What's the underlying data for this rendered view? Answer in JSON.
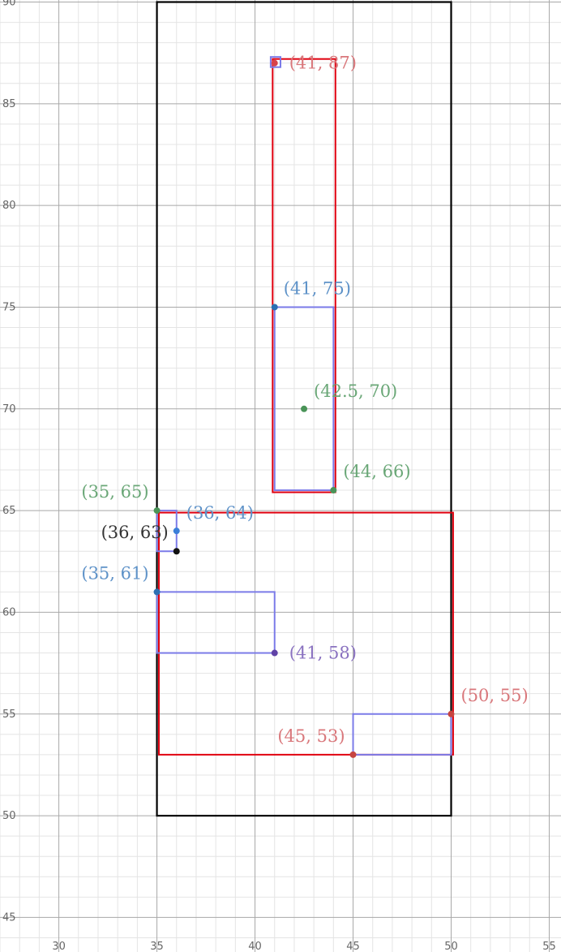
{
  "chart_data": {
    "type": "scatter",
    "title": "",
    "xlabel": "",
    "ylabel": "",
    "xlim": [
      27,
      55.6
    ],
    "ylim": [
      43.3,
      90.1
    ],
    "grid": true,
    "x_ticks": [
      30,
      35,
      40,
      45,
      50,
      55
    ],
    "y_ticks": [
      45,
      50,
      55,
      60,
      65,
      70,
      75,
      80,
      85,
      90
    ],
    "x_tick_labels": [
      "30",
      "35",
      "40",
      "45",
      "50",
      "55"
    ],
    "y_tick_labels": [
      "45",
      "50",
      "55",
      "60",
      "65",
      "70",
      "75",
      "80",
      "85",
      "90"
    ],
    "rectangles": [
      {
        "x1": 35,
        "y1": 50,
        "x2": 50,
        "y2": 90,
        "color": "#000000"
      },
      {
        "x1": 35.1,
        "y1": 53,
        "x2": 50.1,
        "y2": 64.9,
        "color": "#e0000f"
      },
      {
        "x1": 40.9,
        "y1": 65.9,
        "x2": 44.1,
        "y2": 87.2,
        "color": "#e0000f"
      },
      {
        "x1": 41,
        "y1": 66,
        "x2": 44,
        "y2": 75,
        "color": "#7b7be8"
      },
      {
        "x1": 35,
        "y1": 58,
        "x2": 41,
        "y2": 61,
        "color": "#7b7be8"
      },
      {
        "x1": 35,
        "y1": 63,
        "x2": 36,
        "y2": 65,
        "color": "#7b7be8"
      },
      {
        "x1": 45,
        "y1": 53,
        "x2": 50,
        "y2": 55,
        "color": "#7b7be8"
      },
      {
        "x1": 40.8,
        "y1": 86.8,
        "x2": 41.3,
        "y2": 87.3,
        "color": "#7b7be8"
      }
    ],
    "points": [
      {
        "x": 41,
        "y": 87,
        "label": "(41, 87)",
        "color": "#d7424a",
        "label_color": "#d9777b",
        "dot": "#d7424a"
      },
      {
        "x": 41,
        "y": 75,
        "label": "(41, 75)",
        "color": "#2d70b3",
        "label_color": "#5e92c8",
        "dot": "#2d70b3"
      },
      {
        "x": 42.5,
        "y": 70,
        "label": "(42.5, 70)",
        "color": "#388c46",
        "label_color": "#6aa777",
        "dot": "#4a9458"
      },
      {
        "x": 44,
        "y": 66,
        "label": "(44, 66)",
        "color": "#388c46",
        "label_color": "#6aa777",
        "dot": "#4a9458"
      },
      {
        "x": 35,
        "y": 65,
        "label": "(35, 65)",
        "color": "#388c46",
        "label_color": "#6aa777",
        "dot": "#4a9458"
      },
      {
        "x": 36,
        "y": 64,
        "label": "(36, 64)",
        "color": "#2d70b3",
        "label_color": "#5e92c8",
        "dot": "#3b7ed8"
      },
      {
        "x": 36,
        "y": 63,
        "label": "(36, 63)",
        "color": "#000000",
        "label_color": "#333333",
        "dot": "#111111"
      },
      {
        "x": 35,
        "y": 61,
        "label": "(35, 61)",
        "color": "#2d70b3",
        "label_color": "#5e92c8",
        "dot": "#2d70b3"
      },
      {
        "x": 41,
        "y": 58,
        "label": "(41, 58)",
        "color": "#6042a6",
        "label_color": "#8a72c0",
        "dot": "#6042a6"
      },
      {
        "x": 50,
        "y": 55,
        "label": "(50, 55)",
        "color": "#c74440",
        "label_color": "#d9777b",
        "dot": "#c74440"
      },
      {
        "x": 45,
        "y": 53,
        "label": "(45, 53)",
        "color": "#c74440",
        "label_color": "#d9777b",
        "dot": "#c74440"
      }
    ]
  }
}
